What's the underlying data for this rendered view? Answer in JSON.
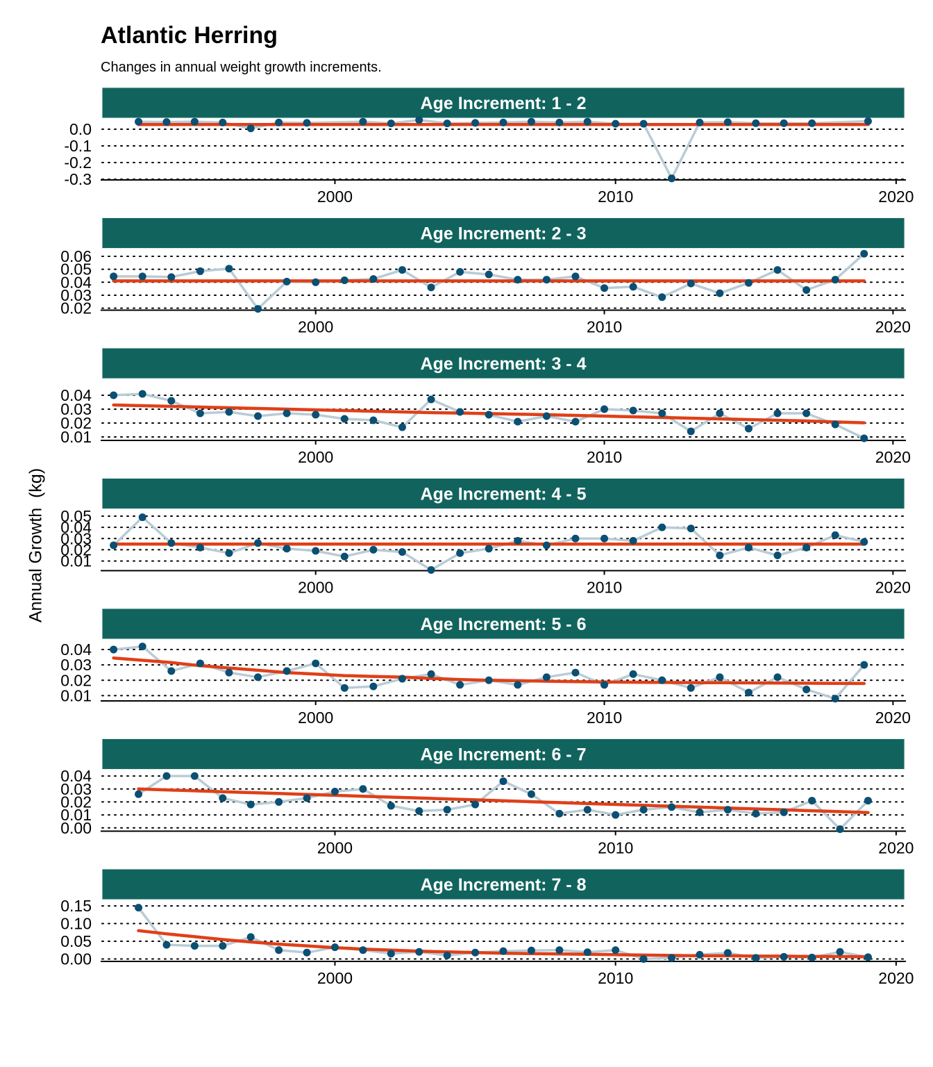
{
  "title": "Atlantic Herring",
  "subtitle": "Changes in annual weight growth increments.",
  "ylabel": "Annual Growth  (kg)",
  "colors": {
    "strip": "#11645e",
    "observed_line": "#b9ccd6",
    "points": "#0b4f73",
    "trend": "#df4019"
  },
  "chart_data": [
    {
      "type": "line",
      "panel": "Age Increment: 1 - 2",
      "xlim": [
        1991.7,
        2020.3
      ],
      "ylim": [
        -0.3,
        0.05
      ],
      "xticks": [
        2000,
        2010,
        2020
      ],
      "yticks": [
        0.0,
        -0.1,
        -0.2,
        -0.3
      ],
      "ytick_labels": [
        "0.0",
        "-0.1",
        "-0.2",
        "-0.3"
      ],
      "grid": "horizontal dotted",
      "x": [
        1993,
        1994,
        1995,
        1996,
        1997,
        1998,
        1999,
        2001,
        2002,
        2003,
        2004,
        2005,
        2006,
        2007,
        2008,
        2009,
        2010,
        2011,
        2012,
        2013,
        2014,
        2015,
        2016,
        2017,
        2019
      ],
      "values": [
        0.045,
        0.043,
        0.045,
        0.04,
        0.005,
        0.04,
        0.038,
        0.045,
        0.035,
        0.055,
        0.035,
        0.038,
        0.04,
        0.045,
        0.04,
        0.045,
        0.033,
        0.033,
        -0.295,
        0.04,
        0.042,
        0.036,
        0.036,
        0.036,
        0.048
      ],
      "trend": [
        0.028,
        0.028,
        0.028,
        0.028,
        0.028,
        0.028,
        0.028,
        0.028,
        0.028,
        0.028,
        0.028,
        0.028,
        0.028,
        0.028,
        0.028,
        0.028,
        0.028,
        0.028,
        0.028,
        0.028,
        0.028,
        0.028,
        0.028,
        0.028,
        0.028
      ]
    },
    {
      "type": "line",
      "panel": "Age Increment: 2 - 3",
      "xlim": [
        1992.6,
        2020.4
      ],
      "ylim": [
        0.019,
        0.064
      ],
      "xticks": [
        2000,
        2010,
        2020
      ],
      "yticks": [
        0.06,
        0.05,
        0.04,
        0.03,
        0.02
      ],
      "ytick_labels": [
        "0.06",
        "0.05",
        "0.04",
        "0.03",
        "0.02"
      ],
      "grid": "horizontal dotted",
      "x": [
        1993,
        1994,
        1995,
        1996,
        1997,
        1998,
        1999,
        2000,
        2001,
        2002,
        2003,
        2004,
        2005,
        2006,
        2007,
        2008,
        2009,
        2010,
        2011,
        2012,
        2013,
        2014,
        2015,
        2016,
        2017,
        2018,
        2019
      ],
      "values": [
        0.0445,
        0.0445,
        0.044,
        0.0485,
        0.0505,
        0.0195,
        0.0405,
        0.04,
        0.0415,
        0.0425,
        0.0495,
        0.036,
        0.048,
        0.046,
        0.042,
        0.042,
        0.0445,
        0.0355,
        0.0365,
        0.0285,
        0.039,
        0.0315,
        0.0395,
        0.0495,
        0.034,
        0.042,
        0.062
      ],
      "trend": [
        0.041,
        0.041,
        0.041,
        0.041,
        0.041,
        0.041,
        0.041,
        0.041,
        0.041,
        0.041,
        0.041,
        0.041,
        0.041,
        0.041,
        0.041,
        0.041,
        0.041,
        0.041,
        0.041,
        0.041,
        0.041,
        0.041,
        0.041,
        0.041,
        0.041,
        0.041,
        0.041
      ]
    },
    {
      "type": "line",
      "panel": "Age Increment: 3 - 4",
      "xlim": [
        1992.6,
        2020.4
      ],
      "ylim": [
        0.008,
        0.05
      ],
      "xticks": [
        2000,
        2010,
        2020
      ],
      "yticks": [
        0.04,
        0.03,
        0.02,
        0.01
      ],
      "ytick_labels": [
        "0.04",
        "0.03",
        "0.02",
        "0.01"
      ],
      "grid": "horizontal dotted",
      "x": [
        1993,
        1994,
        1995,
        1996,
        1997,
        1998,
        1999,
        2000,
        2001,
        2002,
        2003,
        2004,
        2005,
        2006,
        2007,
        2008,
        2009,
        2010,
        2011,
        2012,
        2013,
        2014,
        2015,
        2016,
        2017,
        2018,
        2019
      ],
      "values": [
        0.04,
        0.041,
        0.036,
        0.027,
        0.028,
        0.025,
        0.027,
        0.026,
        0.023,
        0.022,
        0.017,
        0.037,
        0.028,
        0.026,
        0.021,
        0.025,
        0.021,
        0.03,
        0.029,
        0.027,
        0.014,
        0.027,
        0.016,
        0.027,
        0.027,
        0.019,
        0.009
      ],
      "trend": [
        0.033,
        0.0325,
        0.032,
        0.0315,
        0.031,
        0.0305,
        0.03,
        0.0295,
        0.029,
        0.0285,
        0.028,
        0.0275,
        0.0272,
        0.0268,
        0.0264,
        0.026,
        0.0255,
        0.025,
        0.0245,
        0.024,
        0.0235,
        0.023,
        0.0225,
        0.022,
        0.0215,
        0.0208,
        0.0202
      ]
    },
    {
      "type": "line",
      "panel": "Age Increment: 4 - 5",
      "xlim": [
        1992.6,
        2020.4
      ],
      "ylim": [
        0.002,
        0.054
      ],
      "xticks": [
        2000,
        2010,
        2020
      ],
      "yticks": [
        0.05,
        0.04,
        0.03,
        0.02,
        0.01
      ],
      "ytick_labels": [
        "0.05",
        "0.04",
        "0.03",
        "0.02",
        "0.01"
      ],
      "grid": "horizontal dotted",
      "x": [
        1993,
        1994,
        1995,
        1996,
        1997,
        1998,
        1999,
        2000,
        2001,
        2002,
        2003,
        2004,
        2005,
        2006,
        2007,
        2008,
        2009,
        2010,
        2011,
        2012,
        2013,
        2014,
        2015,
        2016,
        2017,
        2018,
        2019
      ],
      "values": [
        0.024,
        0.049,
        0.026,
        0.022,
        0.017,
        0.026,
        0.021,
        0.019,
        0.014,
        0.02,
        0.018,
        0.002,
        0.017,
        0.021,
        0.028,
        0.024,
        0.03,
        0.03,
        0.028,
        0.04,
        0.039,
        0.015,
        0.022,
        0.015,
        0.022,
        0.033,
        0.027
      ],
      "trend": [
        0.025,
        0.025,
        0.025,
        0.025,
        0.025,
        0.025,
        0.025,
        0.025,
        0.025,
        0.025,
        0.025,
        0.025,
        0.025,
        0.025,
        0.025,
        0.025,
        0.025,
        0.025,
        0.025,
        0.025,
        0.025,
        0.025,
        0.025,
        0.025,
        0.025,
        0.025,
        0.025
      ]
    },
    {
      "type": "line",
      "panel": "Age Increment: 5 - 6",
      "xlim": [
        1992.6,
        2020.4
      ],
      "ylim": [
        0.007,
        0.045
      ],
      "xticks": [
        2000,
        2010,
        2020
      ],
      "yticks": [
        0.04,
        0.03,
        0.02,
        0.01
      ],
      "ytick_labels": [
        "0.04",
        "0.03",
        "0.02",
        "0.01"
      ],
      "grid": "horizontal dotted",
      "x": [
        1993,
        1994,
        1995,
        1996,
        1997,
        1998,
        1999,
        2000,
        2001,
        2002,
        2003,
        2004,
        2005,
        2006,
        2007,
        2008,
        2009,
        2010,
        2011,
        2012,
        2013,
        2014,
        2015,
        2016,
        2017,
        2018,
        2019
      ],
      "values": [
        0.04,
        0.042,
        0.026,
        0.031,
        0.025,
        0.022,
        0.026,
        0.031,
        0.015,
        0.016,
        0.021,
        0.024,
        0.017,
        0.02,
        0.017,
        0.022,
        0.025,
        0.017,
        0.024,
        0.02,
        0.015,
        0.022,
        0.012,
        0.022,
        0.014,
        0.008,
        0.03
      ],
      "trend": [
        0.0345,
        0.033,
        0.0315,
        0.0295,
        0.028,
        0.0265,
        0.025,
        0.024,
        0.023,
        0.0225,
        0.022,
        0.0212,
        0.0205,
        0.02,
        0.0197,
        0.0194,
        0.0191,
        0.0189,
        0.0187,
        0.0186,
        0.0185,
        0.0184,
        0.0183,
        0.0182,
        0.0181,
        0.018,
        0.0179
      ]
    },
    {
      "type": "line",
      "panel": "Age Increment: 6 - 7",
      "xlim": [
        1991.7,
        2020.3
      ],
      "ylim": [
        -0.002,
        0.043
      ],
      "xticks": [
        2000,
        2010,
        2020
      ],
      "yticks": [
        0.04,
        0.03,
        0.02,
        0.01,
        0.0
      ],
      "ytick_labels": [
        "0.04",
        "0.03",
        "0.02",
        "0.01",
        "0.00"
      ],
      "grid": "horizontal dotted",
      "x": [
        1993,
        1994,
        1995,
        1996,
        1997,
        1998,
        1999,
        2000,
        2001,
        2002,
        2003,
        2004,
        2005,
        2006,
        2007,
        2008,
        2009,
        2010,
        2011,
        2012,
        2013,
        2014,
        2015,
        2016,
        2017,
        2018,
        2019
      ],
      "values": [
        0.026,
        0.04,
        0.04,
        0.023,
        0.018,
        0.02,
        0.023,
        0.028,
        0.03,
        0.017,
        0.013,
        0.014,
        0.018,
        0.036,
        0.026,
        0.011,
        0.014,
        0.01,
        0.014,
        0.016,
        0.012,
        0.014,
        0.011,
        0.012,
        0.021,
        -0.001,
        0.021
      ],
      "trend": [
        0.03,
        0.0293,
        0.0286,
        0.0279,
        0.0272,
        0.0265,
        0.0258,
        0.0251,
        0.0244,
        0.0237,
        0.023,
        0.0223,
        0.0216,
        0.0209,
        0.0202,
        0.0195,
        0.0188,
        0.0181,
        0.0174,
        0.0167,
        0.016,
        0.0153,
        0.0146,
        0.0139,
        0.0132,
        0.0125,
        0.0118
      ]
    },
    {
      "type": "line",
      "panel": "Age Increment: 7 - 8",
      "xlim": [
        1991.7,
        2020.3
      ],
      "ylim": [
        -0.005,
        0.16
      ],
      "xticks": [
        2000,
        2010,
        2020
      ],
      "yticks": [
        0.15,
        0.1,
        0.05,
        0.0
      ],
      "ytick_labels": [
        "0.15",
        "0.10",
        "0.05",
        "0.00"
      ],
      "grid": "horizontal dotted",
      "x": [
        1993,
        1994,
        1995,
        1996,
        1997,
        1998,
        1999,
        2000,
        2001,
        2002,
        2003,
        2004,
        2005,
        2006,
        2007,
        2008,
        2009,
        2010,
        2011,
        2012,
        2013,
        2014,
        2015,
        2016,
        2017,
        2018,
        2019
      ],
      "values": [
        0.145,
        0.04,
        0.037,
        0.037,
        0.062,
        0.025,
        0.018,
        0.033,
        0.025,
        0.015,
        0.02,
        0.01,
        0.018,
        0.022,
        0.024,
        0.025,
        0.019,
        0.025,
        0.0,
        0.003,
        0.012,
        0.017,
        0.003,
        0.006,
        0.004,
        0.02,
        0.005
      ],
      "trend": [
        0.08,
        0.071,
        0.063,
        0.055,
        0.048,
        0.042,
        0.037,
        0.032,
        0.028,
        0.025,
        0.022,
        0.02,
        0.018,
        0.016,
        0.015,
        0.014,
        0.013,
        0.012,
        0.011,
        0.01,
        0.009,
        0.009,
        0.008,
        0.008,
        0.007,
        0.007,
        0.006
      ]
    }
  ]
}
